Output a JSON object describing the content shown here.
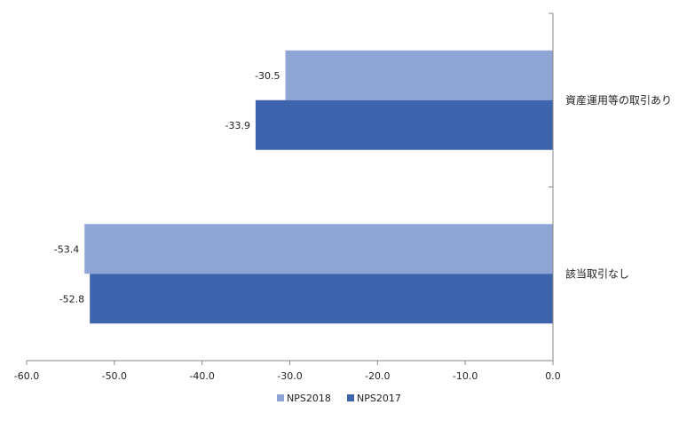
{
  "chart_data": {
    "type": "bar",
    "orientation": "horizontal",
    "categories": [
      "資産運用等の取引あり",
      "該当取引なし"
    ],
    "series": [
      {
        "name": "NPS2018",
        "values": [
          -30.5,
          -53.4
        ],
        "color": "#8fa5d5"
      },
      {
        "name": "NPS2017",
        "values": [
          -33.9,
          -52.8
        ],
        "color": "#3e64ad"
      }
    ],
    "xlim": [
      -60.0,
      0.0
    ],
    "xticks": [
      -60.0,
      -50.0,
      -40.0,
      -30.0,
      -20.0,
      -10.0,
      0.0
    ],
    "tick_labels": [
      "-60.0",
      "-50.0",
      "-40.0",
      "-30.0",
      "-20.0",
      "-10.0",
      "0.0"
    ],
    "data_labels": [
      [
        "-30.5",
        "-53.4"
      ],
      [
        "-33.9",
        "-52.8"
      ]
    ],
    "title": "",
    "xlabel": "",
    "ylabel": "",
    "grid": false,
    "legend_position": "bottom"
  }
}
